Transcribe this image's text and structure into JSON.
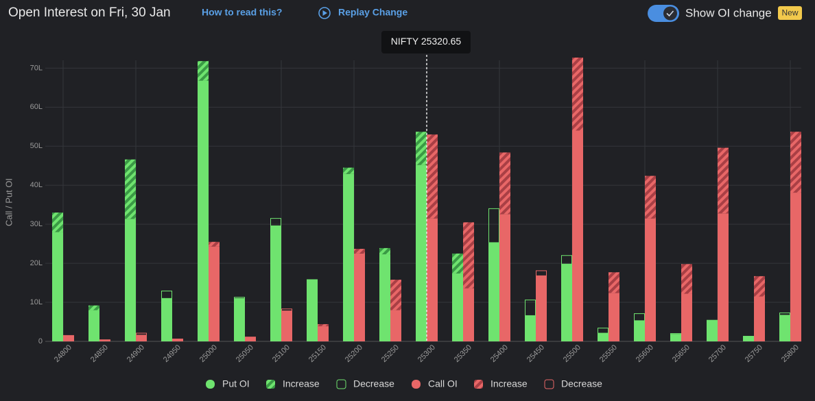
{
  "header": {
    "help": "How to read this?",
    "replay": "Replay Change",
    "toggle": "Show OI change",
    "badge": "New"
  },
  "chart_data": {
    "type": "bar",
    "title": "Open Interest on Fri, 30 Jan",
    "ylabel": "Call / Put OI",
    "spot_label": "NIFTY 25320.65",
    "categories": [
      "24800",
      "24850",
      "24900",
      "24950",
      "25000",
      "25050",
      "25100",
      "25150",
      "25200",
      "25250",
      "25300",
      "25350",
      "25400",
      "25450",
      "25500",
      "25550",
      "25600",
      "25650",
      "25700",
      "25750",
      "25800"
    ],
    "ylim": [
      0,
      72
    ],
    "yticks": [
      {
        "value": 0,
        "label": "0"
      },
      {
        "value": 10,
        "label": "10L"
      },
      {
        "value": 20,
        "label": "20L"
      },
      {
        "value": 30,
        "label": "30L"
      },
      {
        "value": 40,
        "label": "40L"
      },
      {
        "value": 50,
        "label": "50L"
      },
      {
        "value": 60,
        "label": "60L"
      },
      {
        "value": 70,
        "label": "70L"
      }
    ],
    "grid": true,
    "series": [
      {
        "name": "Put OI",
        "color": "#6fe36f",
        "pattern": "solid",
        "stack": "put",
        "values": [
          28.0,
          8.0,
          31.4,
          11.0,
          66.8,
          11.0,
          29.6,
          15.9,
          42.9,
          22.3,
          45.2,
          17.4,
          25.3,
          6.6,
          19.8,
          2.1,
          5.3,
          1.8,
          5.5,
          1.4,
          6.7
        ]
      },
      {
        "name": "Increase",
        "color": "#3a9a45",
        "pattern": "hatch",
        "stack": "put",
        "values": [
          5.0,
          1.2,
          15.2,
          null,
          5.0,
          null,
          null,
          null,
          1.6,
          1.6,
          8.5,
          5.1,
          null,
          null,
          null,
          null,
          null,
          null,
          null,
          null,
          null
        ]
      },
      {
        "name": "Decrease",
        "color": "#6fe36f",
        "pattern": "outline",
        "stack": "put",
        "values": [
          null,
          null,
          null,
          1.9,
          null,
          0.3,
          1.9,
          null,
          null,
          null,
          null,
          null,
          8.7,
          4.0,
          2.2,
          1.3,
          1.8,
          0.2,
          null,
          null,
          0.6
        ]
      },
      {
        "name": "Call OI",
        "color": "#e86767",
        "pattern": "solid",
        "stack": "call",
        "values": [
          1.6,
          0.5,
          1.6,
          0.7,
          24.3,
          1.2,
          7.8,
          3.9,
          22.5,
          8.0,
          31.5,
          13.6,
          32.6,
          16.8,
          54.0,
          12.4,
          31.5,
          12.2,
          32.8,
          11.5,
          38.1
        ]
      },
      {
        "name": "Increase",
        "color": "#a93f45",
        "pattern": "hatch",
        "stack": "call",
        "values": [
          null,
          null,
          null,
          null,
          1.2,
          null,
          null,
          0.5,
          1.2,
          7.8,
          21.5,
          16.9,
          15.8,
          null,
          18.7,
          5.3,
          10.9,
          7.6,
          16.8,
          5.2,
          15.6
        ]
      },
      {
        "name": "Decrease",
        "color": "#e86767",
        "pattern": "outline",
        "stack": "call",
        "values": [
          null,
          null,
          0.5,
          null,
          null,
          null,
          0.5,
          null,
          null,
          null,
          null,
          null,
          null,
          1.3,
          null,
          null,
          null,
          null,
          null,
          null,
          null
        ]
      }
    ]
  }
}
